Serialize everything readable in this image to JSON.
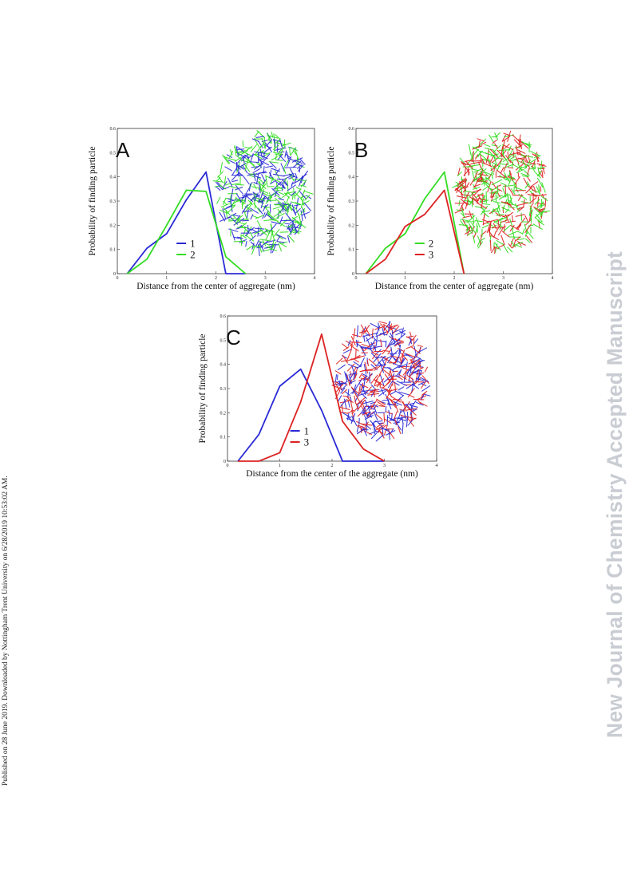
{
  "page": {
    "side_note": "Published on 28 June 2019. Downloaded by Nottingham Trent University on 6/28/2019 10:53:02 AM.",
    "watermark": "New Journal of Chemistry Accepted Manuscript"
  },
  "chart_data": [
    {
      "type": "line",
      "panel": "A",
      "xlabel": "Distance from the center of aggregate (nm)",
      "ylabel": "Probability of finding particle",
      "xlim": [
        0,
        4
      ],
      "ylim": [
        0,
        0.6
      ],
      "xticks": [
        "0",
        "1",
        "2",
        "3",
        "4"
      ],
      "yticks": [
        "0",
        "0.1",
        "0.2",
        "0.3",
        "0.4",
        "0.5",
        "0.6"
      ],
      "legend_position": "bottom-center",
      "series": [
        {
          "name": "1",
          "color": "#2a2ad6",
          "x": [
            0.2,
            0.6,
            1.0,
            1.4,
            1.8,
            2.2,
            2.6
          ],
          "y": [
            0.0,
            0.105,
            0.165,
            0.305,
            0.42,
            0.0,
            0.0
          ]
        },
        {
          "name": "2",
          "color": "#33dd22",
          "x": [
            0.2,
            0.6,
            1.0,
            1.4,
            1.8,
            2.2,
            2.6
          ],
          "y": [
            0.0,
            0.06,
            0.2,
            0.345,
            0.34,
            0.07,
            0.0
          ]
        }
      ],
      "inset": {
        "colors": [
          "#33dd22",
          "#2a2ad6"
        ]
      }
    },
    {
      "type": "line",
      "panel": "B",
      "xlabel": "Distance from the center of aggregate (nm)",
      "ylabel": "Probability of finding particle",
      "xlim": [
        0,
        4
      ],
      "ylim": [
        0,
        0.6
      ],
      "xticks": [
        "0",
        "1",
        "2",
        "3",
        "4"
      ],
      "yticks": [
        "0",
        "0.1",
        "0.2",
        "0.3",
        "0.4",
        "0.5",
        "0.6"
      ],
      "legend_position": "bottom-center",
      "series": [
        {
          "name": "2",
          "color": "#33dd22",
          "x": [
            0.2,
            0.6,
            1.0,
            1.4,
            1.8,
            2.2
          ],
          "y": [
            0.0,
            0.105,
            0.165,
            0.31,
            0.42,
            0.0
          ]
        },
        {
          "name": "3",
          "color": "#dd2222",
          "x": [
            0.2,
            0.6,
            1.0,
            1.4,
            1.8,
            2.2
          ],
          "y": [
            0.0,
            0.06,
            0.195,
            0.245,
            0.345,
            0.0
          ]
        }
      ],
      "inset": {
        "colors": [
          "#33dd22",
          "#dd2222"
        ]
      }
    },
    {
      "type": "line",
      "panel": "C",
      "xlabel": "Distance from the center of the aggregate (nm)",
      "ylabel": "Probability of finding particle",
      "xlim": [
        0,
        4
      ],
      "ylim": [
        0,
        0.6
      ],
      "xticks": [
        "0",
        "1",
        "2",
        "3",
        "4"
      ],
      "yticks": [
        "0",
        "0.1",
        "0.2",
        "0.3",
        "0.4",
        "0.5",
        "0.6"
      ],
      "legend_position": "bottom-center",
      "series": [
        {
          "name": "1",
          "color": "#2a2ad6",
          "x": [
            0.2,
            0.6,
            1.0,
            1.4,
            1.8,
            2.2,
            2.6,
            3.0
          ],
          "y": [
            0.0,
            0.11,
            0.31,
            0.38,
            0.21,
            0.0,
            0.0,
            0.0
          ]
        },
        {
          "name": "3",
          "color": "#dd2222",
          "x": [
            0.2,
            0.6,
            1.0,
            1.4,
            1.8,
            2.2,
            2.6,
            3.0
          ],
          "y": [
            0.0,
            0.0,
            0.035,
            0.245,
            0.525,
            0.165,
            0.05,
            0.0
          ]
        }
      ],
      "inset": {
        "colors": [
          "#dd2222",
          "#2a2ad6"
        ]
      }
    }
  ]
}
